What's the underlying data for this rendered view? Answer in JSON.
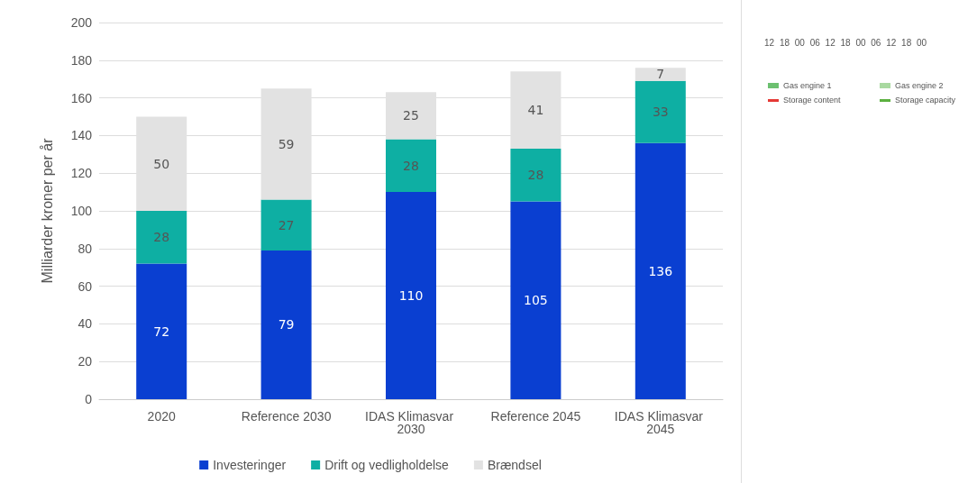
{
  "chart_data": [
    {
      "type": "bar",
      "stacked": true,
      "ylabel": "Milliarder kroner per år",
      "categories": [
        "2020",
        "Reference 2030",
        "IDAS Klimasvar 2030",
        "Reference 2045",
        "IDAS Klimasvar 2045"
      ],
      "series": [
        {
          "name": "Investeringer",
          "color": "#0a3fd1",
          "values": [
            72,
            79,
            110,
            105,
            136
          ]
        },
        {
          "name": "Drift og vedligholdelse",
          "color": "#0eafa3",
          "values": [
            28,
            27,
            28,
            28,
            33
          ]
        },
        {
          "name": "Brændsel",
          "color": "#e2e2e2",
          "values": [
            50,
            59,
            25,
            41,
            7
          ]
        }
      ],
      "ylim": [
        0,
        200
      ],
      "yticks": [
        0,
        20,
        40,
        60,
        80,
        100,
        120,
        140,
        160,
        180,
        200
      ],
      "grid": "y",
      "legend": "bottom",
      "data_labels": true
    },
    {
      "type": "other",
      "annotations": [
        "12 18 00 06 12 18 00 06 12 18 00",
        "Gas engine 1",
        "Gas engine 2",
        "Storage content",
        "Storage capacity"
      ]
    }
  ]
}
